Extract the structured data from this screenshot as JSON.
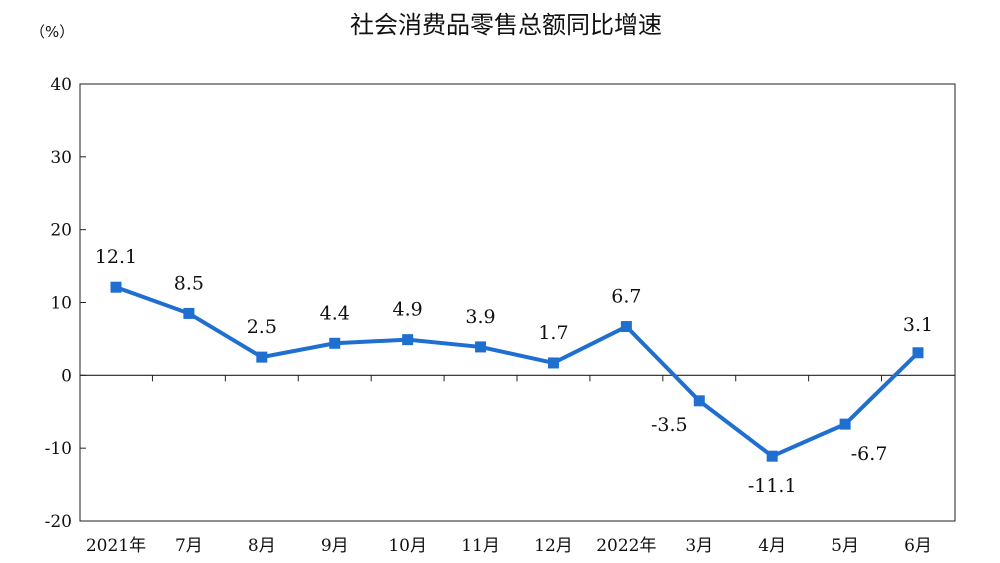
{
  "chart_data": {
    "type": "line",
    "title": "社会消费品零售总额同比增速",
    "unit_label": "（%）",
    "categories": [
      "2021年",
      "7月",
      "8月",
      "9月",
      "10月",
      "11月",
      "12月",
      "2022年",
      "3月",
      "4月",
      "5月",
      "6月"
    ],
    "series": [
      {
        "values": [
          12.1,
          8.5,
          2.5,
          4.4,
          4.9,
          3.9,
          1.7,
          6.7,
          -3.5,
          -11.1,
          -6.7,
          3.1
        ],
        "color": "#1f6fd1"
      }
    ],
    "data_labels": [
      "12.1",
      "8.5",
      "2.5",
      "4.4",
      "4.9",
      "3.9",
      "1.7",
      "6.7",
      "-3.5",
      "-11.1",
      "-6.7",
      "3.1"
    ],
    "ylim": [
      -20,
      40
    ],
    "yticks": [
      40,
      30,
      20,
      10,
      0,
      -10,
      -20
    ],
    "grid": false,
    "legend": "none"
  }
}
